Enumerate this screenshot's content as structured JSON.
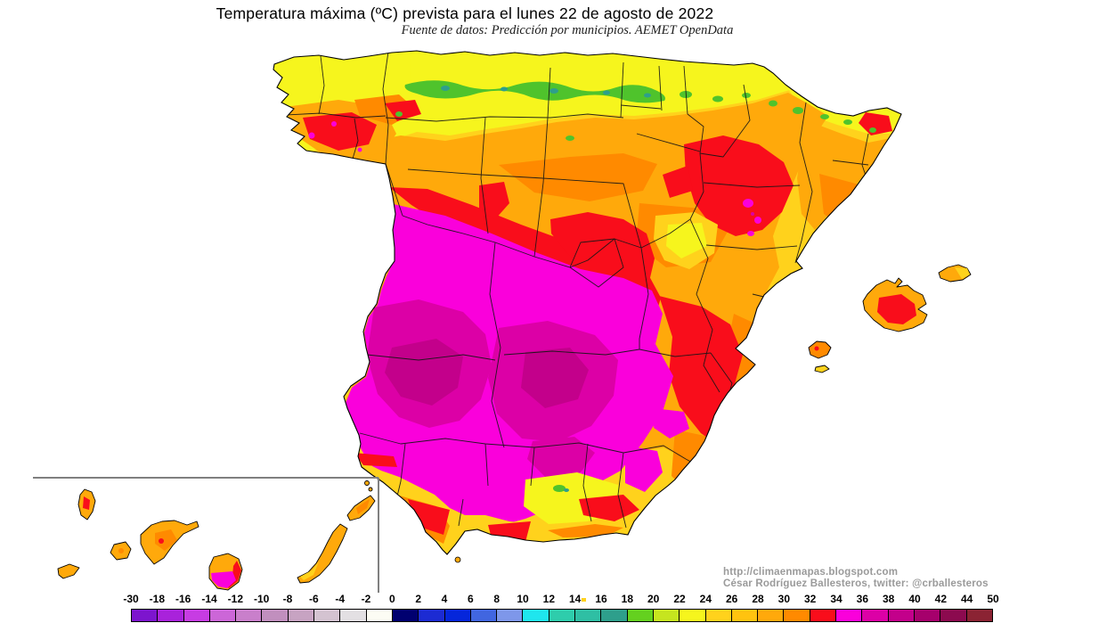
{
  "title": "Temperatura máxima (ºC) prevista para el lunes 22 de agosto de 2022",
  "subtitle": "Fuente de datos: Predicción por municipios. AEMET OpenData",
  "attribution": {
    "url": "http://climaenmapas.blogspot.com",
    "author": "César Rodríguez Ballesteros, twitter: @crballesteros"
  },
  "colorbar": {
    "unit_label": "ºC",
    "tick_labels": [
      "-30",
      "-18",
      "-16",
      "-14",
      "-12",
      "-10",
      "-8",
      "-6",
      "-4",
      "-2",
      "0",
      "2",
      "4",
      "6",
      "8",
      "10",
      "12",
      "14",
      "16",
      "18",
      "20",
      "22",
      "24",
      "26",
      "28",
      "30",
      "32",
      "34",
      "36",
      "38",
      "40",
      "42",
      "44",
      "50"
    ],
    "segment_colors": [
      "#7D15CE",
      "#A922DB",
      "#C73CE3",
      "#CC66D8",
      "#C97FCB",
      "#C18FBE",
      "#C7A3C2",
      "#D4C3D1",
      "#E3E0E3",
      "#FCFCF4",
      "#000070",
      "#1C2BD3",
      "#0526DB",
      "#4166E0",
      "#7E97EA",
      "#1FE6EE",
      "#2ECDAC",
      "#2FBFA4",
      "#2E9F8C",
      "#64D11F",
      "#C6E51F",
      "#F6F51D",
      "#FFD21C",
      "#FFC30F",
      "#FFA90B",
      "#FF8A00",
      "#F90D1B",
      "#FA00DB",
      "#DC00A6",
      "#C3008B",
      "#A6006C",
      "#8C0A4F",
      "#8B2333"
    ]
  },
  "map": {
    "palette": {
      "yellow": "#F6F51D",
      "gold": "#FFD21C",
      "amber_light": "#FFC30F",
      "amber": "#FFA90B",
      "orange": "#FF8A00",
      "red": "#F90D1B",
      "magenta": "#FA00DB",
      "magenta_dark": "#DC00A6",
      "magenta_deep": "#C3008B",
      "green": "#4FC32C",
      "teal": "#2E9F8C",
      "ink": "#000000",
      "inset_frame": "#808080",
      "attribution_gray": "#9A9A9A"
    }
  }
}
